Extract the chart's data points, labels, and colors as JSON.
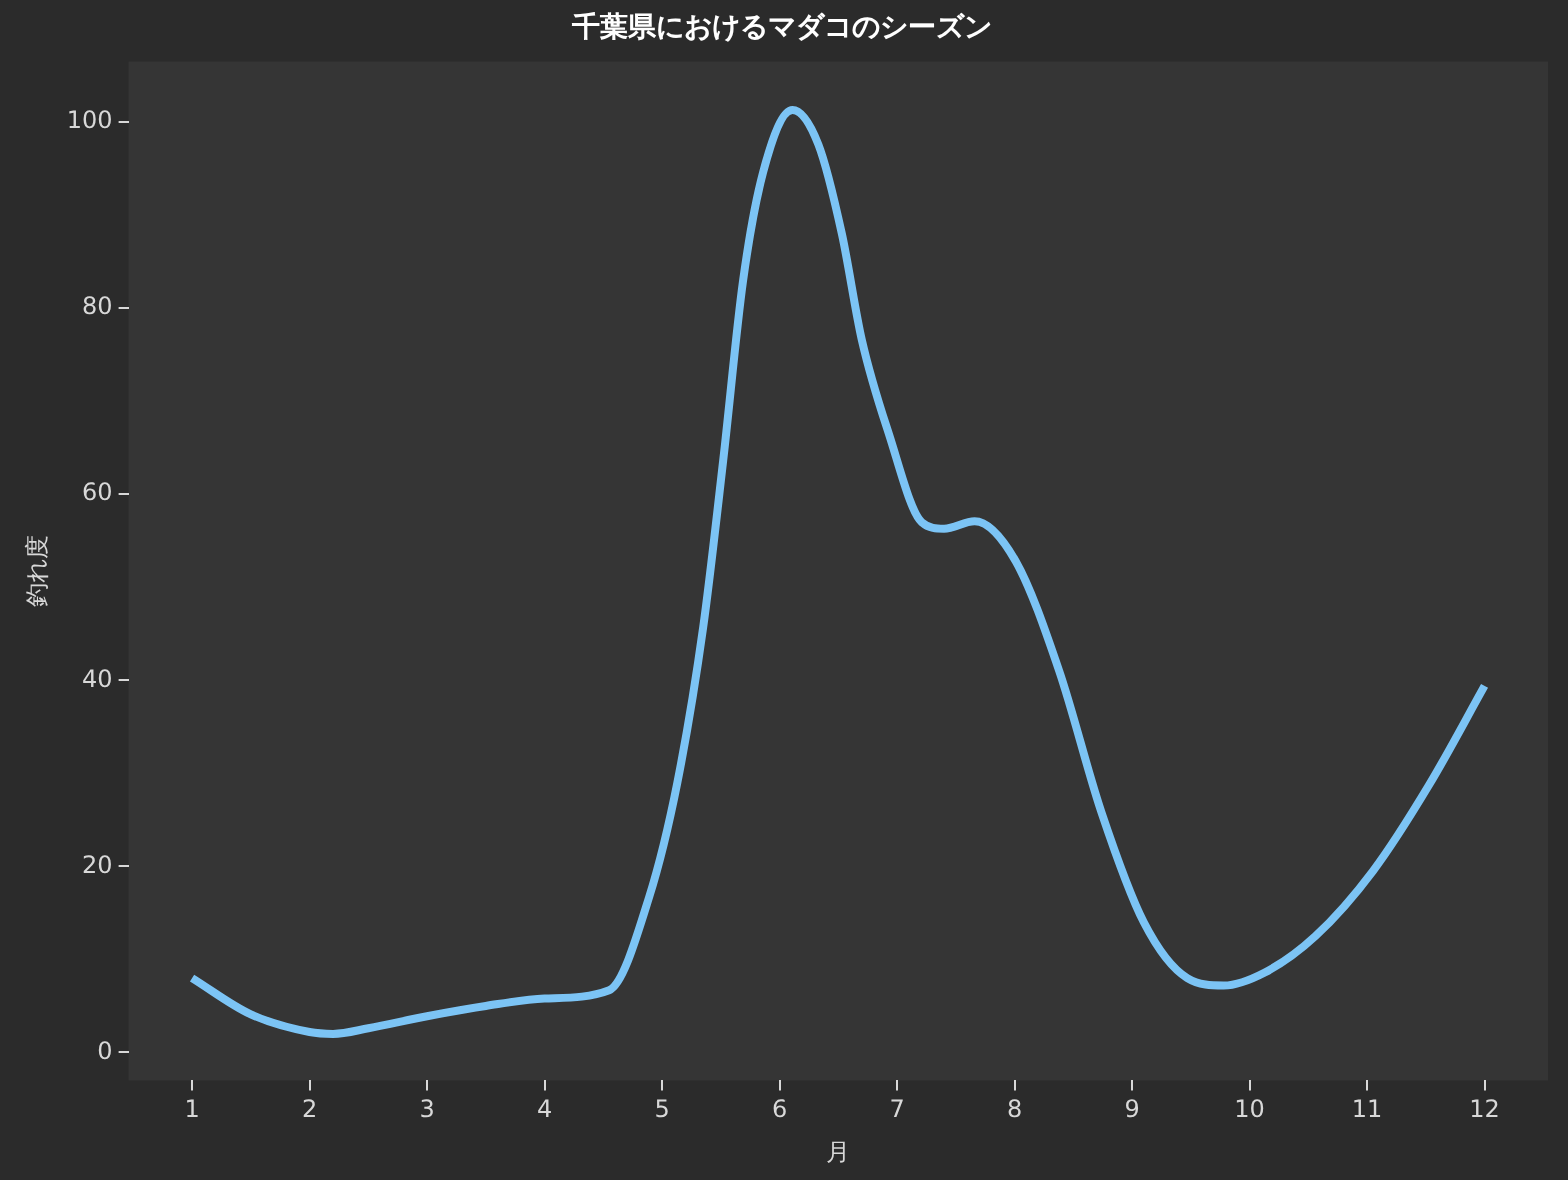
{
  "chart_data": {
    "type": "line",
    "title": "千葉県におけるマダコのシーズン",
    "xlabel": "月",
    "ylabel": "釣れ度",
    "x": [
      1,
      1.5,
      2,
      2.2,
      2.5,
      3,
      3.5,
      4,
      4.55,
      4.89,
      5.13,
      5.35,
      5.52,
      5.69,
      5.86,
      6.11,
      6.33,
      6.53,
      6.7,
      6.93,
      7.21,
      7.4,
      7.66,
      8.01,
      8.38,
      8.74,
      9.1,
      9.47,
      9.78,
      10.13,
      10.56,
      11.05,
      11.53,
      12
    ],
    "series": [
      {
        "color": "#7cc4f5",
        "values": [
          8,
          4.1,
          2.2,
          2,
          2.6,
          3.9,
          5,
          5.8,
          6.7,
          16.7,
          29,
          45.7,
          63.6,
          83,
          94.6,
          101.3,
          97.6,
          88,
          76.6,
          66.5,
          57,
          56.3,
          57.1,
          52.8,
          41,
          25.8,
          14,
          8,
          7.2,
          8.6,
          12.5,
          19.5,
          28.8,
          39.4
        ]
      }
    ],
    "xlim": [
      0.46,
      12.54
    ],
    "xticks": [
      1,
      2,
      3,
      4,
      5,
      6,
      7,
      8,
      9,
      10,
      11,
      12
    ],
    "ylim": [
      -3,
      106.5
    ],
    "yticks": [
      0,
      20,
      40,
      60,
      80,
      100
    ],
    "grid": false,
    "legend": false
  }
}
